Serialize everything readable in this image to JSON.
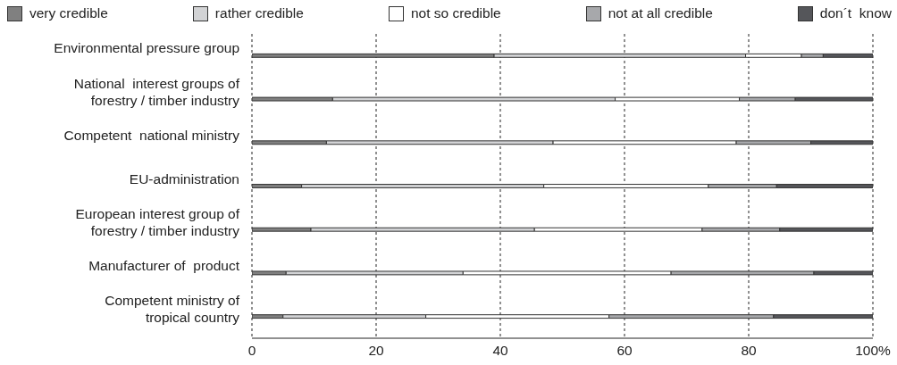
{
  "chart_data": {
    "type": "bar",
    "orientation": "horizontal",
    "stacked": true,
    "categories": [
      "Environmental pressure group",
      "National  interest groups of\nforestry / timber industry",
      "Competent  national ministry",
      "EU-administration",
      "European interest group of\nforestry / timber industry",
      "Manufacturer of  product",
      "Competent ministry of\ntropical country"
    ],
    "series": [
      {
        "name": "very credible",
        "color": "#808080",
        "values": [
          39,
          13,
          12,
          8,
          9.5,
          5.5,
          5
        ]
      },
      {
        "name": "rather credible",
        "color": "#d2d3d5",
        "values": [
          40.5,
          45.5,
          36.5,
          39,
          36,
          28.5,
          23
        ]
      },
      {
        "name": "not so credible",
        "color": "#ffffff",
        "values": [
          9,
          20,
          29.5,
          26.5,
          27,
          33.5,
          29.5
        ]
      },
      {
        "name": "not at all credible",
        "color": "#a7a8ab",
        "values": [
          3.5,
          9,
          12,
          11,
          12.5,
          23,
          26.5
        ]
      },
      {
        "name": "don´t  know",
        "color": "#55565a",
        "values": [
          8,
          12.5,
          10,
          15.5,
          15,
          9.5,
          16
        ]
      }
    ],
    "xlim": [
      0,
      100
    ],
    "xticks": [
      0,
      20,
      40,
      60,
      80,
      {
        "value": 100,
        "label": "100%"
      }
    ],
    "grid": "x",
    "legend": "top"
  }
}
